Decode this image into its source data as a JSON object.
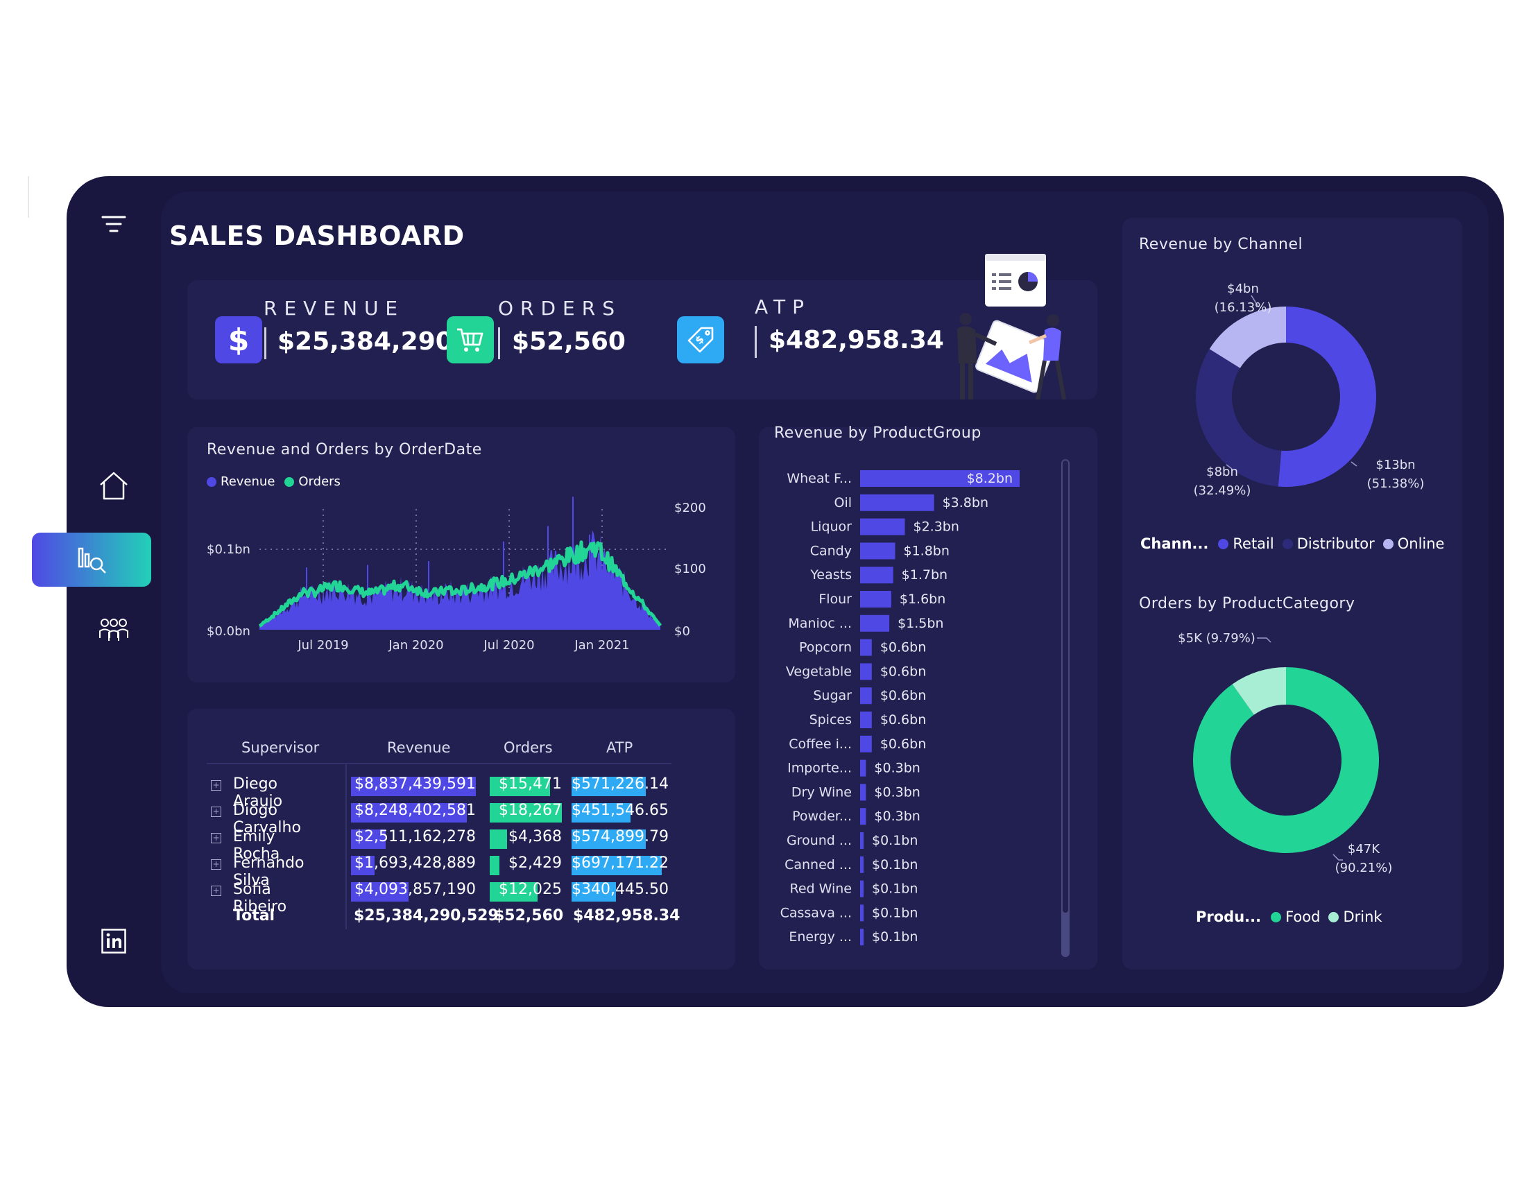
{
  "title": "SALES DASHBOARD",
  "nav": {
    "filter": "filter-icon",
    "home": "home-icon",
    "analytics": "analytics-icon",
    "team": "team-icon",
    "linkedin": "linkedin-icon"
  },
  "kpis": {
    "revenue": {
      "label": "REVENUE",
      "value": "$25,384,290...",
      "icon": "dollar-icon",
      "color": "#5048e5"
    },
    "orders": {
      "label": "ORDERS",
      "value": "$52,560",
      "icon": "cart-icon",
      "color": "#22d495"
    },
    "atp": {
      "label": "ATP",
      "value": "$482,958.34",
      "icon": "price-tag-icon",
      "color": "#2eaaf5"
    }
  },
  "line_chart": {
    "title": "Revenue and Orders by OrderDate",
    "legend": [
      "Revenue",
      "Orders"
    ],
    "y_left_ticks": [
      "$0.1bn",
      "$0.0bn"
    ],
    "y_right_ticks": [
      "$200",
      "$100",
      "$0"
    ],
    "x_ticks": [
      "Jul 2019",
      "Jan 2020",
      "Jul 2020",
      "Jan 2021"
    ]
  },
  "table": {
    "headers": [
      "Supervisor",
      "Revenue",
      "Orders",
      "ATP"
    ],
    "rows": [
      {
        "name": "Diego Araujo",
        "revenue": "$8,837,439,591",
        "orders": "$15,471",
        "atp": "$571,226.14",
        "rev_frac": 1.0,
        "ord_frac": 0.84,
        "atp_frac": 0.82
      },
      {
        "name": "Diogo Carvalho",
        "revenue": "$8,248,402,581",
        "orders": "$18,267",
        "atp": "$451,546.65",
        "rev_frac": 0.93,
        "ord_frac": 1.0,
        "atp_frac": 0.65
      },
      {
        "name": "Emily Rocha",
        "revenue": "$2,511,162,278",
        "orders": "$4,368",
        "atp": "$574,899.79",
        "rev_frac": 0.28,
        "ord_frac": 0.24,
        "atp_frac": 0.82
      },
      {
        "name": "Fernando Silva",
        "revenue": "$1,693,428,889",
        "orders": "$2,429",
        "atp": "$697,171.22",
        "rev_frac": 0.19,
        "ord_frac": 0.13,
        "atp_frac": 1.0
      },
      {
        "name": "Sofia Ribeiro",
        "revenue": "$4,093,857,190",
        "orders": "$12,025",
        "atp": "$340,445.50",
        "rev_frac": 0.46,
        "ord_frac": 0.66,
        "atp_frac": 0.49
      }
    ],
    "total": {
      "label": "Total",
      "revenue": "$25,384,290,529",
      "orders": "$52,560",
      "atp": "$482,958.34"
    }
  },
  "product_group": {
    "title": "Revenue by ProductGroup",
    "bars": [
      {
        "label": "Wheat F...",
        "value": 8.2,
        "text": "$8.2bn"
      },
      {
        "label": "Oil",
        "value": 3.8,
        "text": "$3.8bn"
      },
      {
        "label": "Liquor",
        "value": 2.3,
        "text": "$2.3bn"
      },
      {
        "label": "Candy",
        "value": 1.8,
        "text": "$1.8bn"
      },
      {
        "label": "Yeasts",
        "value": 1.7,
        "text": "$1.7bn"
      },
      {
        "label": "Flour",
        "value": 1.6,
        "text": "$1.6bn"
      },
      {
        "label": "Manioc ...",
        "value": 1.5,
        "text": "$1.5bn"
      },
      {
        "label": "Popcorn",
        "value": 0.6,
        "text": "$0.6bn"
      },
      {
        "label": "Vegetable",
        "value": 0.6,
        "text": "$0.6bn"
      },
      {
        "label": "Sugar",
        "value": 0.6,
        "text": "$0.6bn"
      },
      {
        "label": "Spices",
        "value": 0.6,
        "text": "$0.6bn"
      },
      {
        "label": "Coffee i...",
        "value": 0.6,
        "text": "$0.6bn"
      },
      {
        "label": "Importe...",
        "value": 0.3,
        "text": "$0.3bn"
      },
      {
        "label": "Dry Wine",
        "value": 0.3,
        "text": "$0.3bn"
      },
      {
        "label": "Powder...",
        "value": 0.3,
        "text": "$0.3bn"
      },
      {
        "label": "Ground ...",
        "value": 0.1,
        "text": "$0.1bn"
      },
      {
        "label": "Canned ...",
        "value": 0.1,
        "text": "$0.1bn"
      },
      {
        "label": "Red Wine",
        "value": 0.1,
        "text": "$0.1bn"
      },
      {
        "label": "Cassava ...",
        "value": 0.1,
        "text": "$0.1bn"
      },
      {
        "label": "Energy ...",
        "value": 0.1,
        "text": "$0.1bn"
      }
    ]
  },
  "channel": {
    "title": "Revenue by Channel",
    "legend_title": "Chann...",
    "segments": [
      {
        "name": "Retail",
        "fraction": 0.5138,
        "value": "$13bn",
        "pct": "(51.38%)",
        "color": "#5048e5"
      },
      {
        "name": "Distributor",
        "fraction": 0.3249,
        "value": "$8bn",
        "pct": "(32.49%)",
        "color": "#2d2a7a"
      },
      {
        "name": "Online",
        "fraction": 0.1613,
        "value": "$4bn",
        "pct": "(16.13%)",
        "color": "#b8b6f2"
      }
    ]
  },
  "category": {
    "title": "Orders by ProductCategory",
    "legend_title": "Produ...",
    "segments": [
      {
        "name": "Food",
        "fraction": 0.9021,
        "value": "$47K",
        "pct": "(90.21%)",
        "color": "#22d495"
      },
      {
        "name": "Drink",
        "fraction": 0.0979,
        "value": "$5K (9.79%)",
        "pct": "",
        "color": "#a8eed4"
      }
    ]
  }
}
